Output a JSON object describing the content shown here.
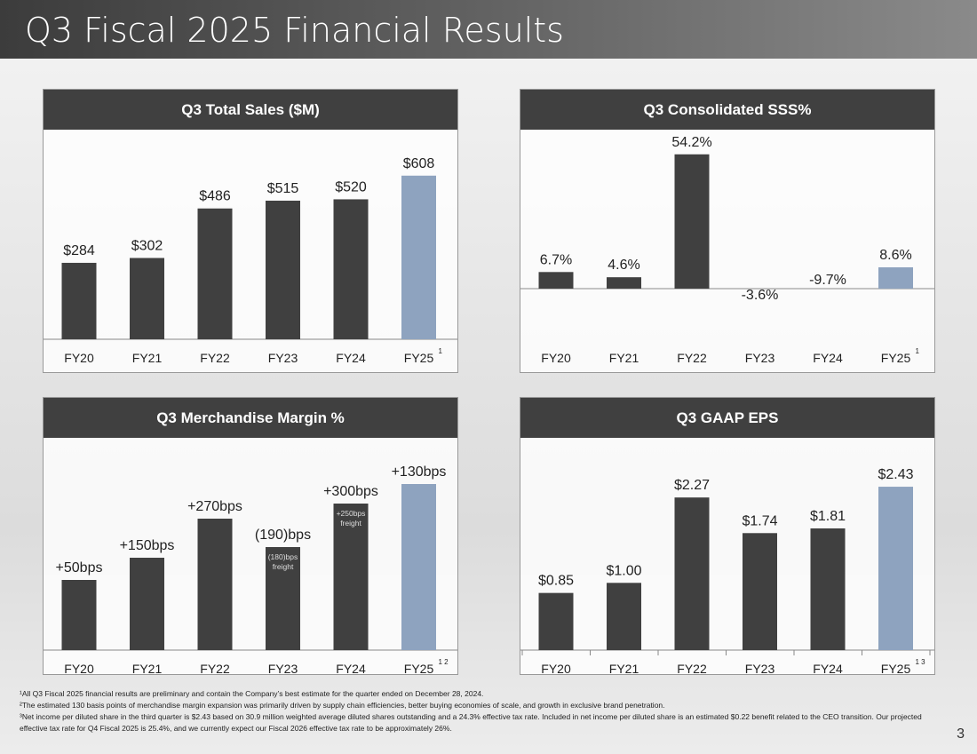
{
  "title": "Q3 Fiscal 2025 Financial Results",
  "page_number": "3",
  "colors": {
    "bar": "#404040",
    "highlight": "#8ea3bf"
  },
  "chart_data": [
    {
      "type": "bar",
      "title": "Q3 Total Sales ($M)",
      "categories": [
        "FY20",
        "FY21",
        "FY22",
        "FY23",
        "FY24",
        "FY25"
      ],
      "values": [
        284,
        302,
        486,
        515,
        520,
        608
      ],
      "labels": [
        "$284",
        "$302",
        "$486",
        "$515",
        "$520",
        "$608"
      ],
      "last_superscript": "1",
      "ylim": [
        0,
        608
      ]
    },
    {
      "type": "bar",
      "title": "Q3 Consolidated SSS%",
      "categories": [
        "FY20",
        "FY21",
        "FY22",
        "FY23",
        "FY24",
        "FY25"
      ],
      "values": [
        6.7,
        4.6,
        54.2,
        -3.6,
        -9.7,
        8.6
      ],
      "labels": [
        "6.7%",
        "4.6%",
        "54.2%",
        "-3.6%",
        "-9.7%",
        "8.6%"
      ],
      "last_superscript": "1"
    },
    {
      "type": "bar",
      "title": "Q3 Merchandise Margin %",
      "categories": [
        "FY20",
        "FY21",
        "FY22",
        "FY23",
        "FY24",
        "FY25"
      ],
      "values": [
        50,
        150,
        270,
        -190,
        300,
        130
      ],
      "labels": [
        "+50bps",
        "+150bps",
        "+270bps",
        "(190)bps",
        "+300bps",
        "+130bps"
      ],
      "inner_labels": [
        "",
        "",
        "",
        "(180)bps freight",
        "+250bps freight",
        ""
      ],
      "last_superscript": "1 2"
    },
    {
      "type": "bar",
      "title": "Q3 GAAP EPS",
      "categories": [
        "FY20",
        "FY21",
        "FY22",
        "FY23",
        "FY24",
        "FY25"
      ],
      "values": [
        0.85,
        1.0,
        2.27,
        1.74,
        1.81,
        2.43
      ],
      "labels": [
        "$0.85",
        "$1.00",
        "$2.27",
        "$1.74",
        "$1.81",
        "$2.43"
      ],
      "last_superscript": "1 3"
    }
  ],
  "footnotes": [
    "¹All Q3 Fiscal 2025 financial results are preliminary and contain the Company’s best estimate for the quarter ended on December 28, 2024.",
    "²The estimated 130 basis points of merchandise margin expansion was primarily driven by supply chain efficiencies, better buying economies of scale, and growth in exclusive brand penetration.",
    "³Net income per diluted share in the third quarter is $2.43 based on 30.9 million weighted average diluted shares outstanding and a 24.3% effective tax rate. Included in net income per diluted share is an estimated $0.22 benefit related to the CEO transition. Our projected effective tax rate for Q4 Fiscal 2025 is 25.4%, and we currently expect our Fiscal 2026 effective tax rate to be approximately 26%."
  ]
}
